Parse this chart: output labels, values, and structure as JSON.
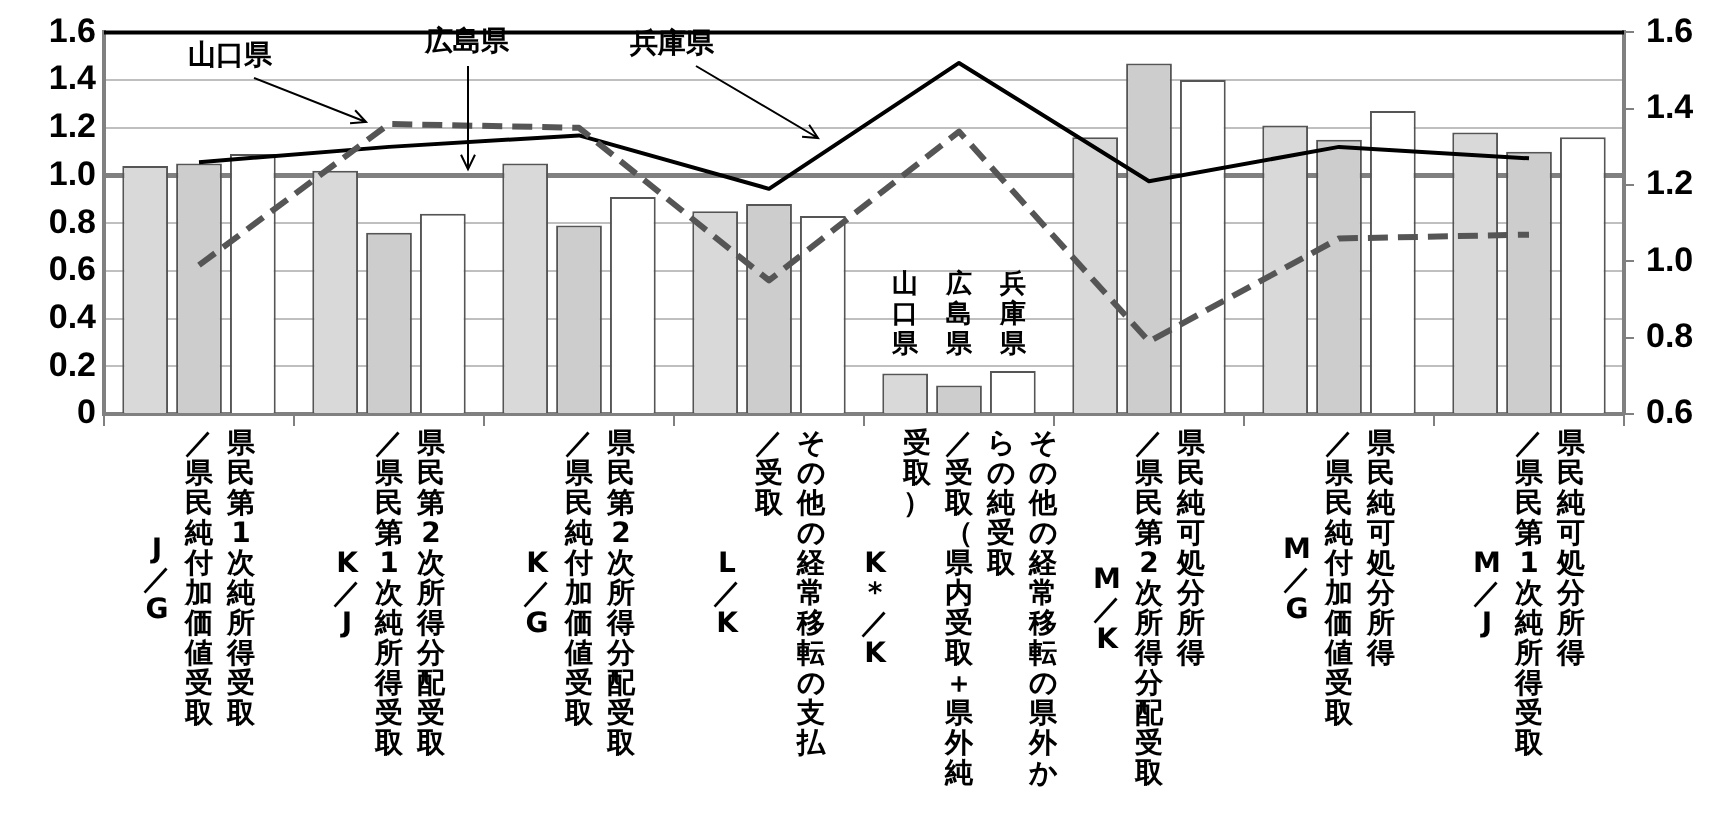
{
  "chart_data": {
    "type": "bar",
    "categories": [
      "県民第1次純所得受取／県民純付加価値受取J／G",
      "県民第2次所得分配受取／県民第1次純所得受取K／J",
      "県民第2次所得分配受取／県民純付加価値受取K／G",
      "その他の経常移転の支払／受取L／K",
      "その他の経常移転の県外からの純受取／受取（県内受取＋県外純受取）K*／K",
      "県民純可処分所得／県民第2次所得分配受取M／K",
      "県民純可処分所得／県民純付加価値受取M／G",
      "県民純可処分所得／県民第1次純所得受取M／J"
    ],
    "annotations": [
      "山口県",
      "広島県",
      "兵庫県"
    ],
    "series": [
      {
        "name": "山口県",
        "color": "#d9d9d9",
        "values": [
          1.04,
          1.02,
          1.05,
          0.85,
          0.17,
          1.16,
          1.21,
          1.18
        ]
      },
      {
        "name": "広島県",
        "color": "#cdcdcd",
        "values": [
          1.05,
          0.76,
          0.79,
          0.88,
          0.12,
          1.47,
          1.15,
          1.1
        ]
      },
      {
        "name": "兵庫県",
        "color": "#ffffff",
        "values": [
          1.09,
          0.84,
          0.91,
          0.83,
          0.18,
          1.4,
          1.27,
          1.16
        ]
      },
      {
        "type": "line",
        "axis": "y2",
        "color": "#555555",
        "line_style": "dashed",
        "values": [
          0.99,
          1.36,
          1.35,
          0.95,
          1.34,
          0.79,
          1.06,
          1.07
        ]
      },
      {
        "type": "line",
        "axis": "y2",
        "color": "#000000",
        "line_style": "solid",
        "values": [
          1.26,
          1.3,
          1.33,
          1.19,
          1.52,
          1.21,
          1.3,
          1.27
        ]
      }
    ],
    "ylim": [
      0,
      1.6
    ],
    "yticks": [
      0,
      {
        "value": 0.2,
        "label": "0.2"
      },
      {
        "value": 0.4,
        "label": "0.4"
      },
      {
        "value": 0.6,
        "label": "0.6"
      },
      {
        "value": 0.8,
        "label": "0.8"
      },
      {
        "value": 1,
        "label": "1.0"
      },
      {
        "value": 1.2,
        "label": "1.2"
      },
      {
        "value": 1.4,
        "label": "1.4"
      },
      {
        "value": 1.6,
        "label": "1.6"
      }
    ],
    "y2lim": [
      0.6,
      1.6
    ],
    "y2ticks": [
      {
        "value": 0.6,
        "label": "0.6"
      },
      {
        "value": 0.8,
        "label": "0.8"
      },
      {
        "value": 1,
        "label": "1.0"
      },
      {
        "value": 1.2,
        "label": "1.2"
      },
      {
        "value": 1.4,
        "label": "1.4"
      },
      {
        "value": 1.6,
        "label": "1.6"
      }
    ],
    "ref_lines": [
      {
        "axis": "y",
        "value": 1,
        "color": "#808080"
      }
    ],
    "grid": "y",
    "legend": false,
    "marker": "none"
  }
}
